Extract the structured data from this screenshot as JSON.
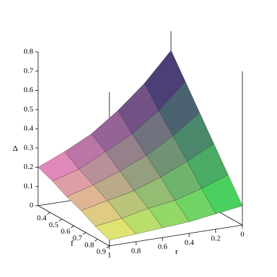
{
  "chart_data": {
    "type": "surface",
    "xlabel": "f",
    "ylabel": "r",
    "zlabel": "Δ",
    "x": [
      0.3,
      0.42,
      0.54,
      0.66,
      0.78,
      0.9
    ],
    "y": [
      0,
      0.2,
      0.4,
      0.6,
      0.8,
      1
    ],
    "z": [
      [
        0.7,
        0.55,
        0.43,
        0.33,
        0.26,
        0.2
      ],
      [
        0.58,
        0.45,
        0.35,
        0.28,
        0.21,
        0.17
      ],
      [
        0.46,
        0.36,
        0.28,
        0.22,
        0.17,
        0.13
      ],
      [
        0.34,
        0.27,
        0.21,
        0.16,
        0.13,
        0.1
      ],
      [
        0.22,
        0.17,
        0.13,
        0.11,
        0.08,
        0.06
      ],
      [
        0.1,
        0.08,
        0.06,
        0.05,
        0.04,
        0.03
      ]
    ],
    "xlim": [
      0.3,
      0.9
    ],
    "xticks": [
      0.4,
      0.5,
      0.6,
      0.7,
      0.8,
      0.9
    ],
    "ylim": [
      0,
      1
    ],
    "yticks": [
      0,
      0.2,
      0.4,
      0.6,
      0.8,
      1
    ],
    "zlim": [
      0,
      0.8
    ],
    "zticks": [
      0,
      0.1,
      0.2,
      0.3,
      0.4,
      0.5,
      0.6,
      0.7,
      0.8
    ],
    "corner_colors": [
      "#f286c8",
      "#3a2370",
      "#36e05a",
      "#f2f06a"
    ]
  }
}
